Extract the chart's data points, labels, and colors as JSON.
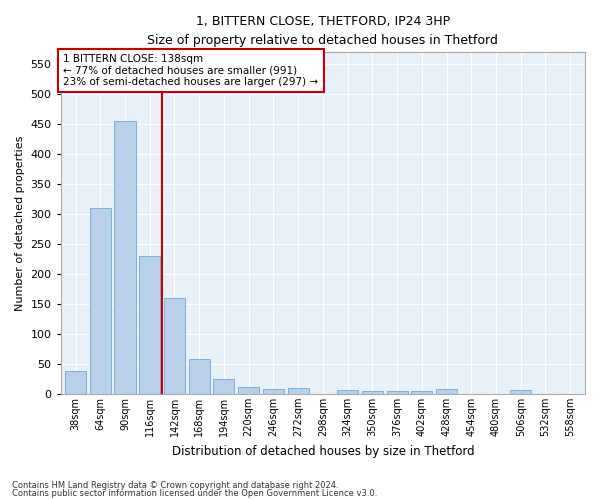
{
  "title": "1, BITTERN CLOSE, THETFORD, IP24 3HP",
  "subtitle": "Size of property relative to detached houses in Thetford",
  "xlabel": "Distribution of detached houses by size in Thetford",
  "ylabel": "Number of detached properties",
  "footnote1": "Contains HM Land Registry data © Crown copyright and database right 2024.",
  "footnote2": "Contains public sector information licensed under the Open Government Licence v3.0.",
  "annotation_line1": "1 BITTERN CLOSE: 138sqm",
  "annotation_line2": "← 77% of detached houses are smaller (991)",
  "annotation_line3": "23% of semi-detached houses are larger (297) →",
  "categories": [
    "38sqm",
    "64sqm",
    "90sqm",
    "116sqm",
    "142sqm",
    "168sqm",
    "194sqm",
    "220sqm",
    "246sqm",
    "272sqm",
    "298sqm",
    "324sqm",
    "350sqm",
    "376sqm",
    "402sqm",
    "428sqm",
    "454sqm",
    "480sqm",
    "506sqm",
    "532sqm",
    "558sqm"
  ],
  "values": [
    38,
    311,
    455,
    230,
    160,
    58,
    25,
    11,
    8,
    9,
    0,
    6,
    5,
    4,
    4,
    8,
    0,
    0,
    6,
    0,
    0
  ],
  "bar_color": "#b8d0ea",
  "bar_edge_color": "#6aaad4",
  "vline_color": "#cc0000",
  "background_color": "#e8f0f8",
  "grid_color": "#ffffff",
  "ylim": [
    0,
    570
  ],
  "yticks": [
    0,
    50,
    100,
    150,
    200,
    250,
    300,
    350,
    400,
    450,
    500,
    550
  ]
}
